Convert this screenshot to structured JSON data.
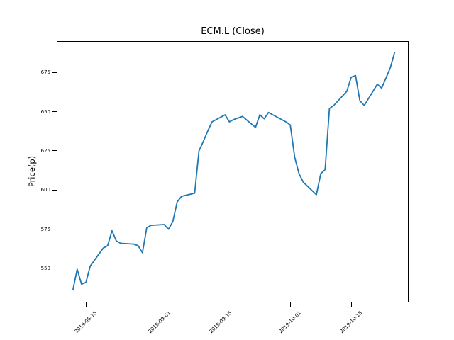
{
  "chart_data": {
    "type": "line",
    "title": "ECM.L (Close)",
    "xlabel": "",
    "ylabel": "Price(p)",
    "x_ticks": [
      "2019-08-15",
      "2019-09-01",
      "2019-09-15",
      "2019-10-01",
      "2019-10-15"
    ],
    "y_ticks": [
      550,
      575,
      600,
      625,
      650,
      675
    ],
    "xlim_days": [
      -3.7,
      77.2
    ],
    "ylim": [
      528.2,
      695.2
    ],
    "grid": false,
    "legend": false,
    "axes_rect": [
      80,
      57.6,
      496,
      369.6
    ],
    "background_color": "#ffffff",
    "axis_color": "#000000",
    "series": [
      {
        "name": "Close",
        "color": "#1f77b4",
        "points": [
          [
            "2019-08-12",
            536
          ],
          [
            "2019-08-13",
            549.5
          ],
          [
            "2019-08-14",
            540
          ],
          [
            "2019-08-15",
            541
          ],
          [
            "2019-08-16",
            551.5
          ],
          [
            "2019-08-19",
            563
          ],
          [
            "2019-08-20",
            564.5
          ],
          [
            "2019-08-21",
            574
          ],
          [
            "2019-08-22",
            567.5
          ],
          [
            "2019-08-23",
            566
          ],
          [
            "2019-08-26",
            565.5
          ],
          [
            "2019-08-27",
            564.5
          ],
          [
            "2019-08-28",
            560
          ],
          [
            "2019-08-29",
            576
          ],
          [
            "2019-08-30",
            577.5
          ],
          [
            "2019-09-02",
            578
          ],
          [
            "2019-09-03",
            575
          ],
          [
            "2019-09-04",
            580
          ],
          [
            "2019-09-05",
            592.5
          ],
          [
            "2019-09-06",
            596
          ],
          [
            "2019-09-09",
            598
          ],
          [
            "2019-09-10",
            625
          ],
          [
            "2019-09-11",
            631
          ],
          [
            "2019-09-12",
            637.5
          ],
          [
            "2019-09-13",
            643.5
          ],
          [
            "2019-09-16",
            648
          ],
          [
            "2019-09-17",
            643.5
          ],
          [
            "2019-09-18",
            645
          ],
          [
            "2019-09-19",
            646
          ],
          [
            "2019-09-20",
            647
          ],
          [
            "2019-09-23",
            640
          ],
          [
            "2019-09-24",
            648
          ],
          [
            "2019-09-25",
            645.5
          ],
          [
            "2019-09-26",
            649.5
          ],
          [
            "2019-09-27",
            648
          ],
          [
            "2019-09-30",
            643.5
          ],
          [
            "2019-10-01",
            641.5
          ],
          [
            "2019-10-02",
            621
          ],
          [
            "2019-10-03",
            610.5
          ],
          [
            "2019-10-04",
            605
          ],
          [
            "2019-10-07",
            597
          ],
          [
            "2019-10-08",
            610.5
          ],
          [
            "2019-10-09",
            613
          ],
          [
            "2019-10-10",
            652
          ],
          [
            "2019-10-11",
            654
          ],
          [
            "2019-10-14",
            663
          ],
          [
            "2019-10-15",
            672
          ],
          [
            "2019-10-16",
            673
          ],
          [
            "2019-10-17",
            657
          ],
          [
            "2019-10-18",
            654
          ],
          [
            "2019-10-21",
            667.5
          ],
          [
            "2019-10-22",
            665
          ],
          [
            "2019-10-23",
            671.5
          ],
          [
            "2019-10-24",
            678
          ],
          [
            "2019-10-25",
            688
          ]
        ]
      }
    ]
  }
}
